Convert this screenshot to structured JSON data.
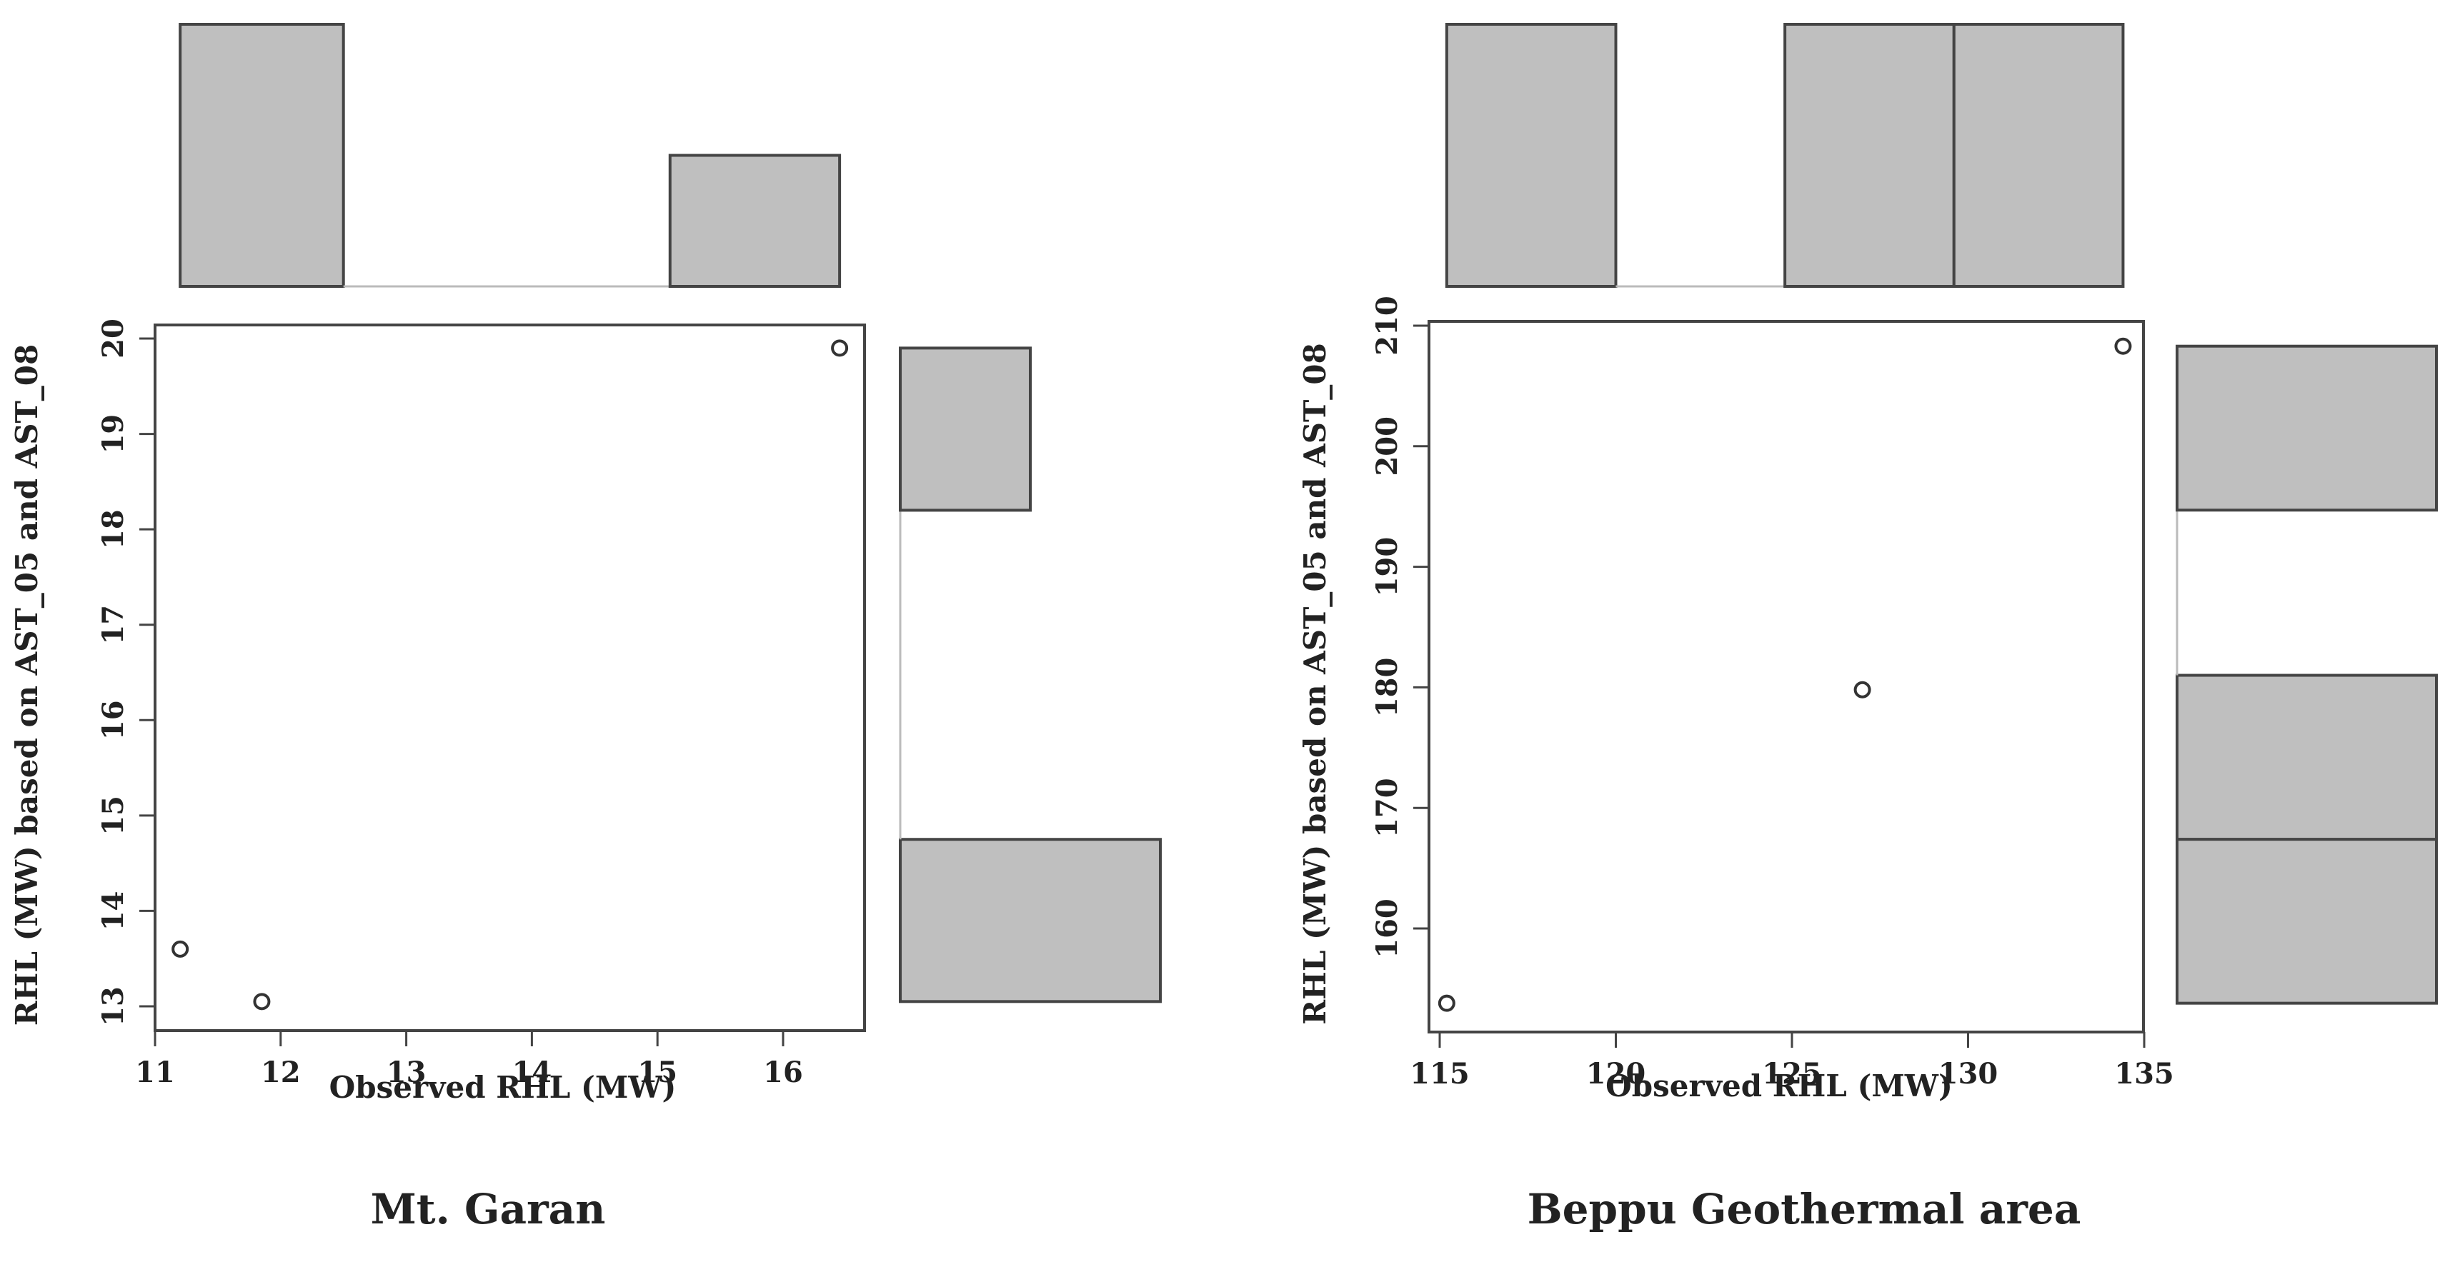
{
  "chart_data": [
    {
      "type": "scatter",
      "title": "Mt. Garan",
      "xlabel": "Observed RHL (MW)",
      "ylabel": "RHL (MW) based on AST_05 and AST_08",
      "xlim": [
        11,
        16.65
      ],
      "ylim": [
        12.8,
        20.15
      ],
      "xticks": [
        11,
        12,
        13,
        14,
        15,
        16
      ],
      "yticks": [
        13,
        14,
        15,
        16,
        17,
        18,
        19,
        20
      ],
      "points": [
        {
          "x": 11.2,
          "y": 13.6
        },
        {
          "x": 11.85,
          "y": 13.05
        },
        {
          "x": 16.45,
          "y": 19.9
        }
      ],
      "x_histogram": [
        {
          "from": 11.2,
          "to": 12.5,
          "count": 2
        },
        {
          "from": 12.5,
          "to": 15.1,
          "count": 0
        },
        {
          "from": 15.1,
          "to": 16.45,
          "count": 1
        }
      ],
      "y_histogram": [
        {
          "from": 13.05,
          "to": 14.75,
          "count": 2
        },
        {
          "from": 14.75,
          "to": 18.2,
          "count": 0
        },
        {
          "from": 18.2,
          "to": 19.9,
          "count": 1
        }
      ],
      "grid": false,
      "colors": {
        "bar": "#bfbfbf",
        "outline": "#444444"
      }
    },
    {
      "type": "scatter",
      "title": "Beppu Geothermal area",
      "xlabel": "Observed RHL (MW)",
      "ylabel": "RHL (MW) based on AST_05 and AST_08",
      "xlim": [
        114.6,
        135.1
      ],
      "ylim": [
        152.2,
        210.5
      ],
      "xticks": [
        115,
        120,
        125,
        130,
        135
      ],
      "yticks": [
        160,
        170,
        180,
        190,
        200,
        210
      ],
      "points": [
        {
          "x": 115.2,
          "y": 153.8
        },
        {
          "x": 127.0,
          "y": 179.8
        },
        {
          "x": 134.4,
          "y": 208.3
        }
      ],
      "x_histogram": [
        {
          "from": 115.2,
          "to": 120.0,
          "count": 1
        },
        {
          "from": 120.0,
          "to": 124.8,
          "count": 0
        },
        {
          "from": 124.8,
          "to": 129.6,
          "count": 1
        },
        {
          "from": 129.6,
          "to": 134.4,
          "count": 1
        }
      ],
      "y_histogram": [
        {
          "from": 153.8,
          "to": 167.4,
          "count": 1
        },
        {
          "from": 167.4,
          "to": 181.0,
          "count": 1
        },
        {
          "from": 181.0,
          "to": 194.7,
          "count": 0
        },
        {
          "from": 194.7,
          "to": 208.3,
          "count": 1
        }
      ],
      "grid": false,
      "colors": {
        "bar": "#bfbfbf",
        "outline": "#444444"
      }
    }
  ]
}
